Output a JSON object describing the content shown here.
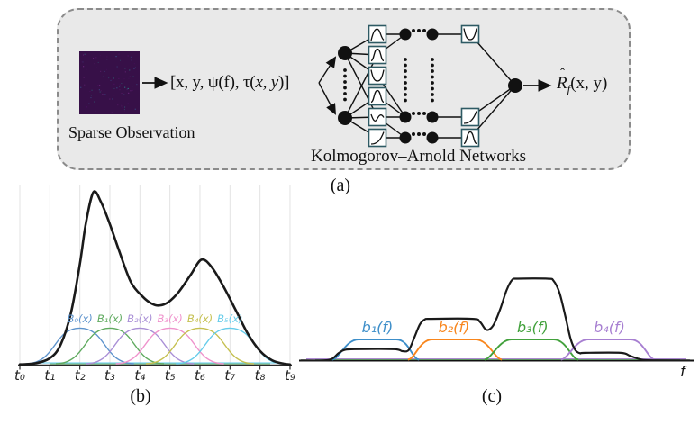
{
  "figure": {
    "panel_a": {
      "caption": "(a)",
      "sparse_image_label": "Sparse Observation",
      "input_vector_prefix": "[x, y, ψ(f), τ(",
      "input_vector_italic": "x, y",
      "input_vector_suffix": ")]",
      "network_label": "Kolmogorov–Arnold Networks",
      "output_hat": "ˆ",
      "output_base": "R",
      "output_sub": "f",
      "output_args": "(x, y)",
      "colors": {
        "panel_fill": "#e9e9e9",
        "panel_border": "#8b8b8b",
        "node": "#111111",
        "box_border": "#2e5a64",
        "sparse_image": "#371048",
        "speckles": [
          "#2aa198",
          "#7b2d8b",
          "#3b6ea5",
          "#57106b"
        ]
      },
      "icons": {
        "activation_boxes": "spline-activation-icon",
        "node": "network-node-dot",
        "ellipsis": "vertical-ellipsis-dots"
      }
    },
    "panel_b": {
      "caption": "(b)"
    },
    "panel_c": {
      "caption": "(c)"
    }
  },
  "chart_data": [
    {
      "type": "line",
      "panel": "b",
      "description": "Six B-spline basis functions over knots t0–t9 and their weighted sum (black)",
      "x_tick_labels": [
        "t₀",
        "t₁",
        "t₂",
        "t₃",
        "t₄",
        "t₅",
        "t₆",
        "t₇",
        "t₈",
        "t₉"
      ],
      "x_range": [
        0,
        9
      ],
      "grid": true,
      "grid_color": "#e3e3e3",
      "axis_color": "#2b2b2b",
      "sum_curve": {
        "color": "#1a1a1a",
        "points": [
          [
            0,
            0.004
          ],
          [
            0.5,
            0.01
          ],
          [
            1,
            0.04
          ],
          [
            1.35,
            0.115
          ],
          [
            1.7,
            0.3
          ],
          [
            2.0,
            0.585
          ],
          [
            2.2,
            0.82
          ],
          [
            2.45,
            1.0
          ],
          [
            2.7,
            0.945
          ],
          [
            3.0,
            0.815
          ],
          [
            3.3,
            0.665
          ],
          [
            3.7,
            0.48
          ],
          [
            4.1,
            0.395
          ],
          [
            4.4,
            0.355
          ],
          [
            4.65,
            0.345
          ],
          [
            4.95,
            0.365
          ],
          [
            5.3,
            0.425
          ],
          [
            5.7,
            0.525
          ],
          [
            6.05,
            0.61
          ],
          [
            6.4,
            0.565
          ],
          [
            6.8,
            0.45
          ],
          [
            7.2,
            0.315
          ],
          [
            7.6,
            0.18
          ],
          [
            8.0,
            0.082
          ],
          [
            8.4,
            0.028
          ],
          [
            8.8,
            0.008
          ],
          [
            9,
            0.004
          ]
        ]
      },
      "basis_height": 0.214,
      "basis_halfwidth": 1.8,
      "basis_series": [
        {
          "label": "B₀(x)",
          "center": 2,
          "color": "#5d93cc"
        },
        {
          "label": "B₁(x)",
          "center": 3,
          "color": "#5faa5f"
        },
        {
          "label": "B₂(x)",
          "center": 4,
          "color": "#a98fd6"
        },
        {
          "label": "B₃(x)",
          "center": 5,
          "color": "#ef92cc"
        },
        {
          "label": "B₄(x)",
          "center": 6,
          "color": "#c5c050"
        },
        {
          "label": "B₅(x)",
          "center": 7,
          "color": "#66ccea"
        }
      ]
    },
    {
      "type": "line",
      "panel": "c",
      "description": "Four trapezoidal frequency basis functions and their weighted sum (black)",
      "x_axis_label": "f",
      "axis_color": "#111111",
      "sum_curve": {
        "color": "#1a1a1a",
        "points": [
          [
            0.005,
            0.002
          ],
          [
            0.06,
            0.002
          ],
          [
            0.083,
            0.02
          ],
          [
            0.1,
            0.09
          ],
          [
            0.115,
            0.13
          ],
          [
            0.14,
            0.14
          ],
          [
            0.24,
            0.14
          ],
          [
            0.262,
            0.115
          ],
          [
            0.278,
            0.13
          ],
          [
            0.292,
            0.28
          ],
          [
            0.306,
            0.44
          ],
          [
            0.318,
            0.5
          ],
          [
            0.335,
            0.51
          ],
          [
            0.44,
            0.51
          ],
          [
            0.458,
            0.475
          ],
          [
            0.472,
            0.385
          ],
          [
            0.482,
            0.38
          ],
          [
            0.494,
            0.445
          ],
          [
            0.51,
            0.63
          ],
          [
            0.526,
            0.86
          ],
          [
            0.54,
            0.985
          ],
          [
            0.555,
            1.0
          ],
          [
            0.63,
            1.0
          ],
          [
            0.645,
            0.975
          ],
          [
            0.66,
            0.83
          ],
          [
            0.675,
            0.54
          ],
          [
            0.688,
            0.27
          ],
          [
            0.7,
            0.13
          ],
          [
            0.712,
            0.09
          ],
          [
            0.725,
            0.095
          ],
          [
            0.815,
            0.095
          ],
          [
            0.838,
            0.06
          ],
          [
            0.862,
            0.02
          ],
          [
            0.885,
            0.004
          ],
          [
            0.99,
            0.002
          ]
        ]
      },
      "basis_height": 0.258,
      "basis_series": [
        {
          "label": "b₁(f)",
          "color": "#3d8ec9",
          "shape": [
            0.084,
            0.139,
            0.258,
            0.304
          ]
        },
        {
          "label": "b₂(f)",
          "color": "#f8861d",
          "shape": [
            0.276,
            0.326,
            0.459,
            0.514
          ]
        },
        {
          "label": "b₃(f)",
          "color": "#42a13c",
          "shape": [
            0.47,
            0.527,
            0.657,
            0.708
          ]
        },
        {
          "label": "b₄(f)",
          "color": "#a77fd1",
          "shape": [
            0.664,
            0.721,
            0.852,
            0.902
          ]
        }
      ]
    }
  ]
}
